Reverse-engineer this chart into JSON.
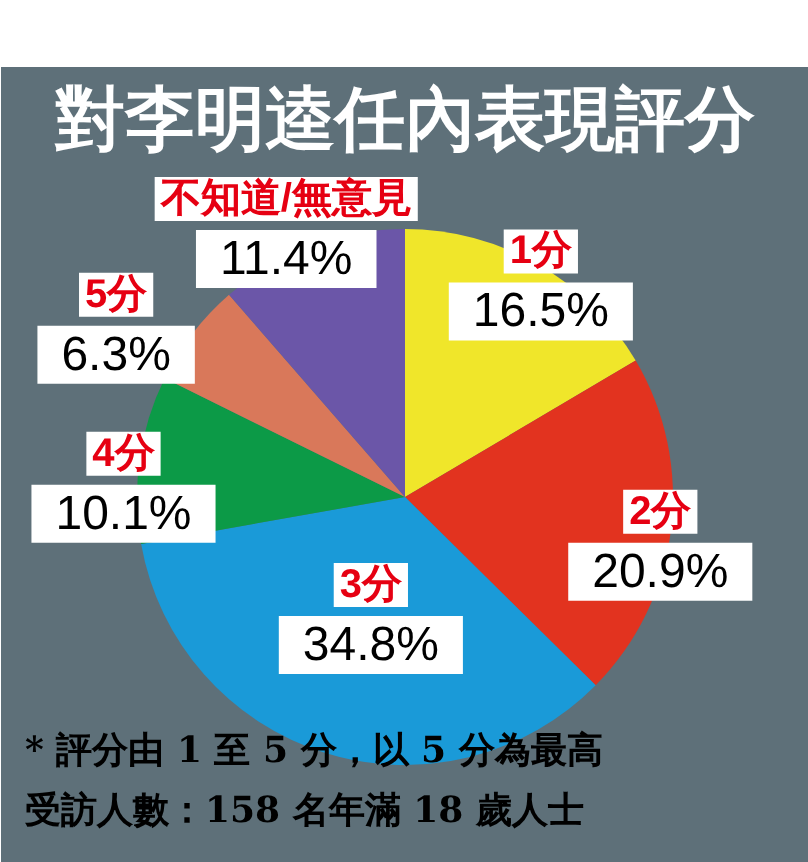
{
  "chart_data": {
    "type": "pie",
    "title": "對李明逵任內表現評分",
    "categories": [
      "1分",
      "2分",
      "3分",
      "4分",
      "5分",
      "不知道/無意見"
    ],
    "values": [
      16.5,
      20.9,
      34.8,
      10.1,
      6.3,
      11.4
    ],
    "colors": [
      "#f0e62a",
      "#e2331f",
      "#1a9ad8",
      "#0c9a47",
      "#d9785a",
      "#6b56a8"
    ],
    "value_labels": [
      "16.5%",
      "20.9%",
      "34.8%",
      "10.1%",
      "6.3%",
      "11.4%"
    ],
    "annotations": [
      "* 評分由 1 至 5 分，以 5 分為最高",
      "受訪人數：158 名年滿 18 歲人士"
    ]
  }
}
